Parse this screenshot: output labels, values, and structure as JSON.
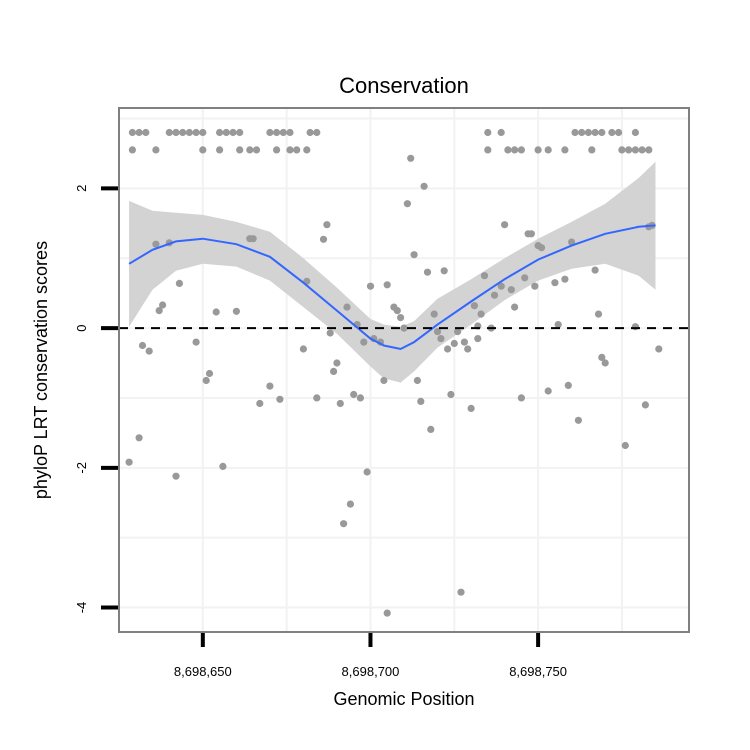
{
  "chart_data": {
    "type": "scatter",
    "title": "Conservation",
    "xlabel": "Genomic Position",
    "ylabel": "phyloP LRT conservation scores",
    "xlim": [
      8698625,
      8698795
    ],
    "ylim": [
      -4.35,
      3.15
    ],
    "x_ticks": [
      8698650,
      8698700,
      8698750
    ],
    "x_tick_labels": [
      "8,698,650",
      "8,698,700",
      "8,698,750"
    ],
    "y_ticks": [
      -4,
      -2,
      0,
      2
    ],
    "y_tick_labels": [
      "-4",
      "-2",
      "0",
      "2"
    ],
    "reference_line": {
      "y": 0,
      "style": "dashed"
    },
    "colors": {
      "points": "#999999",
      "smooth": "#3366ff",
      "band": "#d3d3d3",
      "panel_border": "#808080",
      "grid": "#f2f2f2"
    },
    "points": [
      [
        8698629,
        2.8
      ],
      [
        8698631,
        2.8
      ],
      [
        8698633,
        2.8
      ],
      [
        8698629,
        2.55
      ],
      [
        8698636,
        2.55
      ],
      [
        8698640,
        2.8
      ],
      [
        8698642,
        2.8
      ],
      [
        8698644,
        2.8
      ],
      [
        8698646,
        2.8
      ],
      [
        8698648,
        2.8
      ],
      [
        8698650,
        2.8
      ],
      [
        8698655,
        2.8
      ],
      [
        8698657,
        2.8
      ],
      [
        8698659,
        2.8
      ],
      [
        8698661,
        2.8
      ],
      [
        8698650,
        2.55
      ],
      [
        8698655,
        2.55
      ],
      [
        8698661,
        2.55
      ],
      [
        8698664,
        2.55
      ],
      [
        8698666,
        2.55
      ],
      [
        8698670,
        2.8
      ],
      [
        8698672,
        2.8
      ],
      [
        8698674,
        2.8
      ],
      [
        8698676,
        2.8
      ],
      [
        8698672,
        2.55
      ],
      [
        8698676,
        2.55
      ],
      [
        8698678,
        2.55
      ],
      [
        8698681,
        2.55
      ],
      [
        8698682,
        2.8
      ],
      [
        8698684,
        2.8
      ],
      [
        8698735,
        2.8
      ],
      [
        8698739,
        2.8
      ],
      [
        8698735,
        2.55
      ],
      [
        8698741,
        2.55
      ],
      [
        8698743,
        2.55
      ],
      [
        8698745,
        2.55
      ],
      [
        8698750,
        2.55
      ],
      [
        8698753,
        2.55
      ],
      [
        8698758,
        2.55
      ],
      [
        8698766,
        2.55
      ],
      [
        8698761,
        2.8
      ],
      [
        8698763,
        2.8
      ],
      [
        8698765,
        2.8
      ],
      [
        8698767,
        2.8
      ],
      [
        8698769,
        2.8
      ],
      [
        8698772,
        2.8
      ],
      [
        8698774,
        2.8
      ],
      [
        8698779,
        2.8
      ],
      [
        8698775,
        2.55
      ],
      [
        8698777,
        2.55
      ],
      [
        8698779,
        2.55
      ],
      [
        8698781,
        2.55
      ],
      [
        8698783,
        2.55
      ],
      [
        8698628,
        -1.92
      ],
      [
        8698631,
        -1.57
      ],
      [
        8698632,
        -0.25
      ],
      [
        8698634,
        -0.33
      ],
      [
        8698636,
        1.2
      ],
      [
        8698637,
        0.25
      ],
      [
        8698638,
        0.33
      ],
      [
        8698640,
        1.22
      ],
      [
        8698642,
        -2.12
      ],
      [
        8698643,
        0.64
      ],
      [
        8698648,
        -0.2
      ],
      [
        8698651,
        -0.75
      ],
      [
        8698652,
        -0.65
      ],
      [
        8698654,
        0.23
      ],
      [
        8698656,
        -1.98
      ],
      [
        8698660,
        0.24
      ],
      [
        8698664,
        1.28
      ],
      [
        8698665,
        1.28
      ],
      [
        8698667,
        -1.08
      ],
      [
        8698670,
        -0.83
      ],
      [
        8698673,
        -1.02
      ],
      [
        8698680,
        -0.3
      ],
      [
        8698681,
        0.67
      ],
      [
        8698684,
        -1.0
      ],
      [
        8698686,
        1.27
      ],
      [
        8698687,
        1.48
      ],
      [
        8698688,
        -0.07
      ],
      [
        8698689,
        -0.62
      ],
      [
        8698690,
        -0.5
      ],
      [
        8698691,
        -1.08
      ],
      [
        8698692,
        -2.8
      ],
      [
        8698693,
        0.3
      ],
      [
        8698694,
        -2.52
      ],
      [
        8698695,
        -0.95
      ],
      [
        8698696,
        0.05
      ],
      [
        8698697,
        -1.0
      ],
      [
        8698698,
        -0.2
      ],
      [
        8698699,
        -2.06
      ],
      [
        8698700,
        0.6
      ],
      [
        8698701,
        -0.15
      ],
      [
        8698703,
        -0.2
      ],
      [
        8698704,
        -0.75
      ],
      [
        8698705,
        -4.08
      ],
      [
        8698705,
        0.62
      ],
      [
        8698707,
        0.3
      ],
      [
        8698708,
        0.25
      ],
      [
        8698709,
        0.15
      ],
      [
        8698710,
        0.0
      ],
      [
        8698711,
        1.78
      ],
      [
        8698712,
        2.43
      ],
      [
        8698713,
        1.05
      ],
      [
        8698714,
        -0.75
      ],
      [
        8698715,
        -1.05
      ],
      [
        8698716,
        2.03
      ],
      [
        8698717,
        0.8
      ],
      [
        8698718,
        -1.45
      ],
      [
        8698719,
        0.2
      ],
      [
        8698720,
        -0.05
      ],
      [
        8698721,
        -0.15
      ],
      [
        8698722,
        0.82
      ],
      [
        8698723,
        -0.3
      ],
      [
        8698724,
        -0.95
      ],
      [
        8698725,
        -0.22
      ],
      [
        8698726,
        -0.05
      ],
      [
        8698727,
        -3.78
      ],
      [
        8698728,
        -0.2
      ],
      [
        8698729,
        -0.3
      ],
      [
        8698730,
        -1.15
      ],
      [
        8698731,
        0.32
      ],
      [
        8698732,
        0.03
      ],
      [
        8698732,
        -0.15
      ],
      [
        8698733,
        0.2
      ],
      [
        8698734,
        0.75
      ],
      [
        8698736,
        0.0
      ],
      [
        8698737,
        0.47
      ],
      [
        8698739,
        0.6
      ],
      [
        8698740,
        1.48
      ],
      [
        8698742,
        0.55
      ],
      [
        8698743,
        0.3
      ],
      [
        8698745,
        -1.0
      ],
      [
        8698746,
        0.72
      ],
      [
        8698747,
        1.35
      ],
      [
        8698748,
        1.35
      ],
      [
        8698749,
        0.6
      ],
      [
        8698750,
        1.18
      ],
      [
        8698751,
        1.15
      ],
      [
        8698753,
        -0.9
      ],
      [
        8698755,
        0.65
      ],
      [
        8698756,
        0.05
      ],
      [
        8698758,
        0.7
      ],
      [
        8698759,
        -0.82
      ],
      [
        8698760,
        1.23
      ],
      [
        8698762,
        -1.32
      ],
      [
        8698767,
        0.83
      ],
      [
        8698768,
        0.2
      ],
      [
        8698769,
        -0.42
      ],
      [
        8698770,
        -0.5
      ],
      [
        8698776,
        -1.68
      ],
      [
        8698779,
        0.02
      ],
      [
        8698782,
        -1.1
      ],
      [
        8698783,
        1.45
      ],
      [
        8698784,
        1.47
      ],
      [
        8698786,
        -0.3
      ]
    ],
    "smooth_line": [
      [
        8698628,
        0.92
      ],
      [
        8698635,
        1.12
      ],
      [
        8698642,
        1.24
      ],
      [
        8698650,
        1.28
      ],
      [
        8698660,
        1.2
      ],
      [
        8698670,
        1.02
      ],
      [
        8698680,
        0.65
      ],
      [
        8698690,
        0.25
      ],
      [
        8698700,
        -0.15
      ],
      [
        8698704,
        -0.25
      ],
      [
        8698709,
        -0.3
      ],
      [
        8698713,
        -0.2
      ],
      [
        8698720,
        0.05
      ],
      [
        8698730,
        0.38
      ],
      [
        8698740,
        0.7
      ],
      [
        8698750,
        0.98
      ],
      [
        8698760,
        1.18
      ],
      [
        8698770,
        1.35
      ],
      [
        8698780,
        1.45
      ],
      [
        8698785,
        1.47
      ]
    ],
    "confidence_band_upper": [
      [
        8698628,
        1.82
      ],
      [
        8698635,
        1.68
      ],
      [
        8698642,
        1.65
      ],
      [
        8698650,
        1.62
      ],
      [
        8698660,
        1.52
      ],
      [
        8698670,
        1.38
      ],
      [
        8698680,
        1.0
      ],
      [
        8698690,
        0.58
      ],
      [
        8698700,
        0.13
      ],
      [
        8698704,
        0.05
      ],
      [
        8698709,
        0.02
      ],
      [
        8698713,
        0.1
      ],
      [
        8698720,
        0.42
      ],
      [
        8698730,
        0.7
      ],
      [
        8698740,
        1.0
      ],
      [
        8698750,
        1.28
      ],
      [
        8698760,
        1.52
      ],
      [
        8698770,
        1.78
      ],
      [
        8698780,
        2.15
      ],
      [
        8698785,
        2.38
      ]
    ],
    "confidence_band_lower": [
      [
        8698628,
        0.02
      ],
      [
        8698635,
        0.55
      ],
      [
        8698642,
        0.82
      ],
      [
        8698650,
        0.92
      ],
      [
        8698660,
        0.88
      ],
      [
        8698670,
        0.68
      ],
      [
        8698680,
        0.3
      ],
      [
        8698690,
        -0.08
      ],
      [
        8698700,
        -0.55
      ],
      [
        8698704,
        -0.72
      ],
      [
        8698709,
        -0.78
      ],
      [
        8698713,
        -0.62
      ],
      [
        8698720,
        -0.28
      ],
      [
        8698730,
        0.05
      ],
      [
        8698740,
        0.4
      ],
      [
        8698750,
        0.68
      ],
      [
        8698760,
        0.85
      ],
      [
        8698770,
        0.92
      ],
      [
        8698780,
        0.75
      ],
      [
        8698785,
        0.55
      ]
    ]
  }
}
